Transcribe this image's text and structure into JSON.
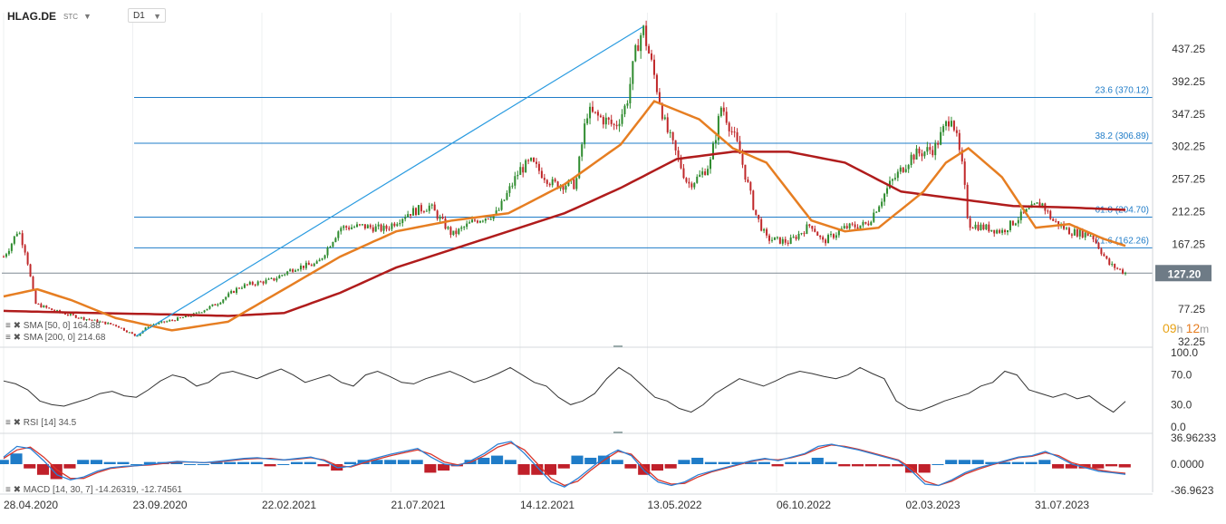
{
  "header": {
    "symbol": "HLAG.DE",
    "symbol_suffix": "STC",
    "timeframe": "D1"
  },
  "colors": {
    "candle_up": "#2e8b2e",
    "candle_down": "#c0282a",
    "sma50": "#e67e22",
    "sma200": "#b01c1c",
    "fib": "#1f7cc8",
    "trend": "#2a9be0",
    "price_label_bg": "#6e7b86",
    "rsi": "#333333",
    "macd_line": "#2a7fd4",
    "signal_line": "#d9362b",
    "hist_pos": "#1f7cc8",
    "hist_neg": "#c0202a",
    "countdown_hours": "#e8a317",
    "countdown_minutes": "#e67e22"
  },
  "price_label": "127.20",
  "countdown": {
    "hours": "09",
    "h_suffix": "h",
    "minutes": "12",
    "m_suffix": "m"
  },
  "legends": {
    "sma50": "SMA [50, 0]  164.88",
    "sma200": "SMA [200, 0]  214.68",
    "rsi": "RSI [14]  34.5",
    "macd": "MACD [14, 30, 7]  -14.26319,  -12.74561"
  },
  "chart_data": [
    {
      "type": "candlestick",
      "title": "HLAG.DE",
      "x_ticks": [
        "28.04.2020",
        "23.09.2020",
        "22.02.2021",
        "21.07.2021",
        "14.12.2021",
        "13.05.2022",
        "06.10.2022",
        "02.03.2023",
        "31.07.2023"
      ],
      "y_ticks": [
        "437.25",
        "392.25",
        "347.25",
        "302.25",
        "257.25",
        "212.25",
        "167.25",
        "77.25",
        "32.25"
      ],
      "ylim": [
        32.25,
        470
      ],
      "fib_levels": [
        {
          "label": "23.6 (370.12)",
          "value": 370.12
        },
        {
          "label": "38.2 (306.89)",
          "value": 306.89
        },
        {
          "label": "61.8 (204.70)",
          "value": 204.7
        },
        {
          "label": "71.6 (162.26)",
          "value": 162.26
        }
      ],
      "current_price": 127.2,
      "price_path": [
        {
          "t": 0,
          "v": 150
        },
        {
          "t": 0.006,
          "v": 165
        },
        {
          "t": 0.013,
          "v": 188
        },
        {
          "t": 0.02,
          "v": 155
        },
        {
          "t": 0.028,
          "v": 85
        },
        {
          "t": 0.045,
          "v": 75
        },
        {
          "t": 0.07,
          "v": 65
        },
        {
          "t": 0.1,
          "v": 55
        },
        {
          "t": 0.118,
          "v": 40
        },
        {
          "t": 0.13,
          "v": 55
        },
        {
          "t": 0.15,
          "v": 62
        },
        {
          "t": 0.17,
          "v": 70
        },
        {
          "t": 0.19,
          "v": 85
        },
        {
          "t": 0.21,
          "v": 108
        },
        {
          "t": 0.22,
          "v": 112
        },
        {
          "t": 0.24,
          "v": 118
        },
        {
          "t": 0.26,
          "v": 135
        },
        {
          "t": 0.28,
          "v": 140
        },
        {
          "t": 0.3,
          "v": 190
        },
        {
          "t": 0.32,
          "v": 192
        },
        {
          "t": 0.34,
          "v": 188
        },
        {
          "t": 0.36,
          "v": 210
        },
        {
          "t": 0.38,
          "v": 220
        },
        {
          "t": 0.4,
          "v": 180
        },
        {
          "t": 0.42,
          "v": 200
        },
        {
          "t": 0.44,
          "v": 210
        },
        {
          "t": 0.46,
          "v": 270
        },
        {
          "t": 0.47,
          "v": 280
        },
        {
          "t": 0.49,
          "v": 250
        },
        {
          "t": 0.51,
          "v": 250
        },
        {
          "t": 0.52,
          "v": 350
        },
        {
          "t": 0.535,
          "v": 340
        },
        {
          "t": 0.545,
          "v": 330
        },
        {
          "t": 0.555,
          "v": 360
        },
        {
          "t": 0.565,
          "v": 445
        },
        {
          "t": 0.57,
          "v": 465
        },
        {
          "t": 0.58,
          "v": 400
        },
        {
          "t": 0.59,
          "v": 330
        },
        {
          "t": 0.61,
          "v": 250
        },
        {
          "t": 0.62,
          "v": 260
        },
        {
          "t": 0.63,
          "v": 280
        },
        {
          "t": 0.64,
          "v": 360
        },
        {
          "t": 0.655,
          "v": 300
        },
        {
          "t": 0.67,
          "v": 210
        },
        {
          "t": 0.68,
          "v": 175
        },
        {
          "t": 0.7,
          "v": 170
        },
        {
          "t": 0.72,
          "v": 195
        },
        {
          "t": 0.73,
          "v": 170
        },
        {
          "t": 0.75,
          "v": 190
        },
        {
          "t": 0.77,
          "v": 195
        },
        {
          "t": 0.79,
          "v": 250
        },
        {
          "t": 0.81,
          "v": 290
        },
        {
          "t": 0.83,
          "v": 300
        },
        {
          "t": 0.845,
          "v": 348
        },
        {
          "t": 0.855,
          "v": 270
        },
        {
          "t": 0.86,
          "v": 195
        },
        {
          "t": 0.89,
          "v": 185
        },
        {
          "t": 0.91,
          "v": 210
        },
        {
          "t": 0.925,
          "v": 225
        },
        {
          "t": 0.935,
          "v": 200
        },
        {
          "t": 0.95,
          "v": 185
        },
        {
          "t": 0.97,
          "v": 180
        },
        {
          "t": 0.985,
          "v": 140
        },
        {
          "t": 1.0,
          "v": 127.2
        }
      ],
      "sma50_path": [
        {
          "t": 0,
          "v": 95
        },
        {
          "t": 0.03,
          "v": 105
        },
        {
          "t": 0.06,
          "v": 90
        },
        {
          "t": 0.1,
          "v": 65
        },
        {
          "t": 0.15,
          "v": 48
        },
        {
          "t": 0.2,
          "v": 60
        },
        {
          "t": 0.25,
          "v": 105
        },
        {
          "t": 0.3,
          "v": 150
        },
        {
          "t": 0.35,
          "v": 185
        },
        {
          "t": 0.4,
          "v": 200
        },
        {
          "t": 0.45,
          "v": 210
        },
        {
          "t": 0.5,
          "v": 250
        },
        {
          "t": 0.55,
          "v": 305
        },
        {
          "t": 0.58,
          "v": 365
        },
        {
          "t": 0.62,
          "v": 340
        },
        {
          "t": 0.65,
          "v": 300
        },
        {
          "t": 0.68,
          "v": 280
        },
        {
          "t": 0.7,
          "v": 240
        },
        {
          "t": 0.72,
          "v": 200
        },
        {
          "t": 0.75,
          "v": 185
        },
        {
          "t": 0.78,
          "v": 190
        },
        {
          "t": 0.82,
          "v": 240
        },
        {
          "t": 0.84,
          "v": 280
        },
        {
          "t": 0.86,
          "v": 300
        },
        {
          "t": 0.89,
          "v": 260
        },
        {
          "t": 0.92,
          "v": 190
        },
        {
          "t": 0.95,
          "v": 195
        },
        {
          "t": 0.98,
          "v": 175
        },
        {
          "t": 1.0,
          "v": 164.88
        }
      ],
      "sma200_path": [
        {
          "t": 0,
          "v": 75
        },
        {
          "t": 0.08,
          "v": 72
        },
        {
          "t": 0.15,
          "v": 70
        },
        {
          "t": 0.2,
          "v": 68
        },
        {
          "t": 0.25,
          "v": 72
        },
        {
          "t": 0.3,
          "v": 100
        },
        {
          "t": 0.35,
          "v": 135
        },
        {
          "t": 0.4,
          "v": 160
        },
        {
          "t": 0.45,
          "v": 185
        },
        {
          "t": 0.5,
          "v": 210
        },
        {
          "t": 0.55,
          "v": 245
        },
        {
          "t": 0.6,
          "v": 285
        },
        {
          "t": 0.65,
          "v": 295
        },
        {
          "t": 0.7,
          "v": 295
        },
        {
          "t": 0.75,
          "v": 280
        },
        {
          "t": 0.8,
          "v": 240
        },
        {
          "t": 0.85,
          "v": 230
        },
        {
          "t": 0.9,
          "v": 220
        },
        {
          "t": 0.95,
          "v": 218
        },
        {
          "t": 1.0,
          "v": 214.68
        }
      ],
      "trendline": [
        {
          "t": 0.118,
          "v": 40
        },
        {
          "t": 0.57,
          "v": 468
        }
      ]
    },
    {
      "type": "line",
      "title": "RSI [14]",
      "y_ticks": [
        "100.0",
        "70.0",
        "30.0",
        "0.0"
      ],
      "ylim": [
        0,
        100
      ],
      "values": [
        62,
        58,
        50,
        35,
        30,
        28,
        33,
        38,
        45,
        48,
        42,
        40,
        50,
        62,
        70,
        66,
        55,
        60,
        72,
        75,
        70,
        65,
        72,
        78,
        70,
        60,
        65,
        70,
        60,
        55,
        70,
        75,
        68,
        60,
        58,
        65,
        70,
        75,
        68,
        60,
        65,
        72,
        80,
        70,
        60,
        55,
        40,
        30,
        35,
        45,
        65,
        80,
        70,
        55,
        40,
        35,
        25,
        20,
        30,
        45,
        55,
        65,
        60,
        55,
        62,
        70,
        75,
        72,
        68,
        65,
        70,
        80,
        72,
        65,
        35,
        25,
        22,
        28,
        35,
        40,
        45,
        55,
        60,
        75,
        70,
        50,
        45,
        40,
        45,
        38,
        42,
        30,
        20,
        34.5
      ]
    },
    {
      "type": "bar+line",
      "title": "MACD [14, 30, 7]",
      "y_ticks": [
        "36.96233",
        "0.0000",
        "-36.9623"
      ],
      "ylim": [
        -36.9623,
        36.96233
      ],
      "macd": [
        10,
        25,
        22,
        5,
        -15,
        -22,
        -18,
        -10,
        -5,
        -3,
        -2,
        0,
        2,
        4,
        3,
        2,
        4,
        6,
        8,
        9,
        7,
        6,
        8,
        10,
        5,
        -5,
        -3,
        4,
        9,
        14,
        18,
        22,
        10,
        0,
        -2,
        5,
        15,
        28,
        32,
        15,
        -5,
        -25,
        -32,
        -20,
        -5,
        10,
        20,
        12,
        -10,
        -25,
        -30,
        -25,
        -15,
        -10,
        -5,
        0,
        5,
        8,
        5,
        10,
        15,
        25,
        28,
        24,
        20,
        15,
        10,
        5,
        -10,
        -28,
        -30,
        -22,
        -12,
        -5,
        0,
        5,
        10,
        12,
        18,
        10,
        0,
        -5,
        -10,
        -12,
        -14.26
      ],
      "signal": [
        8,
        20,
        24,
        10,
        -8,
        -20,
        -20,
        -12,
        -6,
        -4,
        -2,
        -1,
        1,
        3,
        3,
        2,
        3,
        5,
        7,
        8,
        8,
        6,
        7,
        9,
        6,
        -2,
        -4,
        2,
        7,
        12,
        16,
        20,
        14,
        3,
        -1,
        3,
        12,
        24,
        30,
        20,
        0,
        -20,
        -30,
        -24,
        -8,
        6,
        18,
        14,
        -5,
        -22,
        -28,
        -27,
        -18,
        -11,
        -6,
        -1,
        4,
        7,
        6,
        9,
        14,
        22,
        27,
        25,
        21,
        16,
        11,
        6,
        -6,
        -24,
        -30,
        -24,
        -14,
        -7,
        -1,
        4,
        9,
        11,
        16,
        12,
        2,
        -3,
        -8,
        -11,
        -12.75
      ]
    }
  ]
}
